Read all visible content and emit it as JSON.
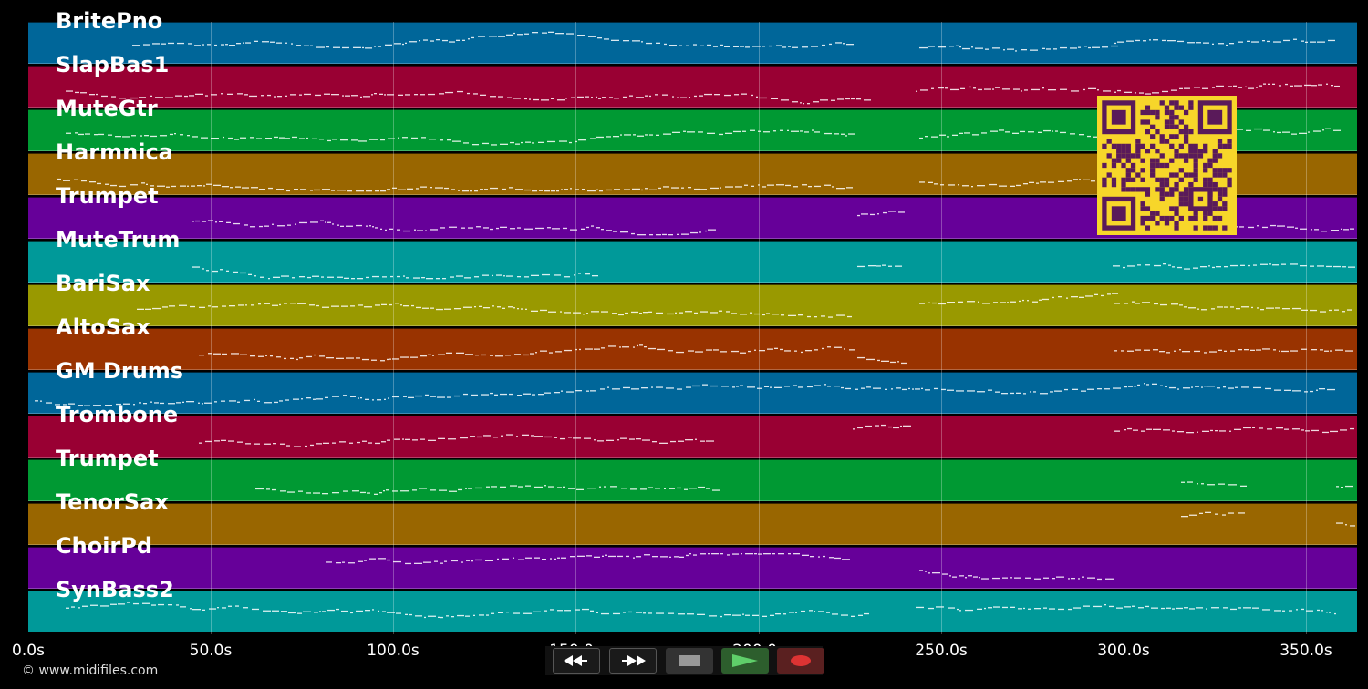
{
  "copyright": "© www.midifiles.com",
  "timeline": {
    "max_seconds": 364,
    "ticks": [
      "0.0s",
      "50.0s",
      "100.0s",
      "150.0s",
      "200.0s",
      "250.0s",
      "300.0s",
      "350.0s"
    ],
    "tick_seconds": [
      0,
      50,
      100,
      150,
      200,
      250,
      300,
      350
    ]
  },
  "tracks": [
    {
      "name": "BritePno",
      "color": "#006699"
    },
    {
      "name": "SlapBas1",
      "color": "#990033"
    },
    {
      "name": "MuteGtr",
      "color": "#009933"
    },
    {
      "name": "Harmnica",
      "color": "#996600"
    },
    {
      "name": "Trumpet",
      "color": "#660099"
    },
    {
      "name": "MuteTrum",
      "color": "#009999"
    },
    {
      "name": "BariSax",
      "color": "#999900"
    },
    {
      "name": "AltoSax",
      "color": "#993300"
    },
    {
      "name": "GM Drums",
      "color": "#006699"
    },
    {
      "name": "Trombone",
      "color": "#990033"
    },
    {
      "name": "Trumpet",
      "color": "#009933"
    },
    {
      "name": "TenorSax",
      "color": "#996600"
    },
    {
      "name": "ChoirPd",
      "color": "#660099"
    },
    {
      "name": "SynBass2",
      "color": "#009999"
    }
  ],
  "transport": {
    "rewind_icon": "rewind-icon",
    "fast_forward_icon": "fast-forward-icon",
    "stop_icon": "stop-icon",
    "play_icon": "play-icon",
    "record_icon": "record-icon",
    "play_color": "#33aa44",
    "record_color": "#cc3333"
  },
  "qr_code_icon": "qr-code-icon",
  "qr_color": "#f7d62a"
}
